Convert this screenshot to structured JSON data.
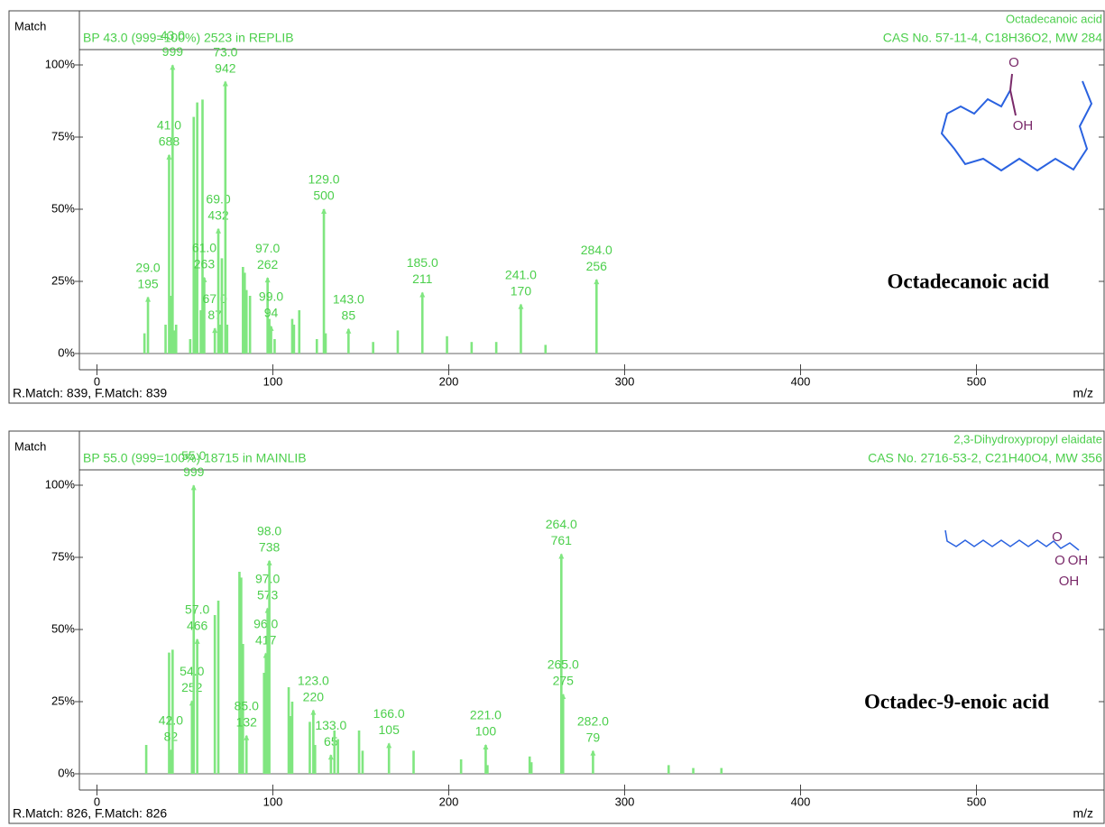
{
  "chart_data": [
    {
      "type": "bar",
      "ylabel": "Match",
      "header": "BP 43.0 (999=100%) 2523 in REPLIB",
      "title": "Octadecanoic acid",
      "subtitle": "CAS No. 57-11-4, C18H36O2, MW 284",
      "annotation": "Octadecanoic acid",
      "structure_labels": [
        "O",
        "OH"
      ],
      "footer": "R.Match: 839, F.Match: 839",
      "xlabel": "m/z",
      "color": "#80e680",
      "xlim": [
        -10,
        570
      ],
      "xticks": [
        0,
        100,
        200,
        300,
        400,
        500
      ],
      "ylim": [
        0,
        100
      ],
      "yticks": [
        {
          "value": 0,
          "label": "0%"
        },
        {
          "value": 25,
          "label": "25%"
        },
        {
          "value": 50,
          "label": "50%"
        },
        {
          "value": 75,
          "label": "75%"
        },
        {
          "value": 100,
          "label": "100%"
        }
      ],
      "x": [
        27,
        29,
        39,
        41,
        42,
        43,
        44,
        45,
        53,
        55,
        56,
        57,
        59,
        60,
        61,
        67,
        69,
        70,
        71,
        73,
        74,
        83,
        84,
        85,
        87,
        97,
        98,
        99,
        101,
        111,
        112,
        115,
        125,
        129,
        130,
        143,
        157,
        171,
        185,
        199,
        213,
        227,
        241,
        255,
        284
      ],
      "values": [
        7,
        19.5,
        10,
        68.8,
        20,
        99.9,
        8,
        10,
        5,
        82,
        30,
        87,
        15,
        88,
        26.3,
        8.7,
        43.2,
        10,
        33,
        94.2,
        10,
        30,
        28,
        22,
        20,
        26.2,
        12,
        9.4,
        5,
        12,
        10,
        15,
        5,
        50.0,
        7,
        8.5,
        4,
        8,
        21.1,
        6,
        4,
        4,
        17.0,
        3,
        25.6
      ],
      "x_labels": [
        null,
        "29.0",
        null,
        "41.0",
        null,
        "43.0",
        null,
        null,
        null,
        null,
        null,
        null,
        null,
        null,
        "61.0",
        "67.0",
        "69.0",
        null,
        null,
        "73.0",
        null,
        null,
        null,
        null,
        null,
        "97.0",
        null,
        "99.0",
        null,
        null,
        null,
        null,
        null,
        "129.0",
        null,
        "143.0",
        null,
        null,
        "185.0",
        null,
        null,
        null,
        "241.0",
        null,
        "284.0"
      ],
      "value_labels": [
        null,
        "195",
        null,
        "688",
        null,
        "999",
        null,
        null,
        null,
        null,
        null,
        null,
        null,
        null,
        "263",
        "87",
        "432",
        null,
        null,
        "942",
        null,
        null,
        null,
        null,
        null,
        "262",
        null,
        "94",
        null,
        null,
        null,
        null,
        null,
        "500",
        null,
        "85",
        null,
        null,
        "211",
        null,
        null,
        null,
        "170",
        null,
        "256"
      ]
    },
    {
      "type": "bar",
      "ylabel": "Match",
      "header": "BP 55.0 (999=100%) 18715 in MAINLIB",
      "title": "2,3-Dihydroxypropyl elaidate",
      "subtitle": "CAS No. 2716-53-2, C21H40O4, MW 356",
      "annotation": "Octadec-9-enoic acid",
      "structure_labels": [
        "O",
        "O",
        "OH",
        "OH"
      ],
      "footer": "R.Match: 826, F.Match: 826",
      "xlabel": "m/z",
      "color": "#80e680",
      "xlim": [
        -10,
        570
      ],
      "xticks": [
        0,
        100,
        200,
        300,
        400,
        500
      ],
      "ylim": [
        0,
        100
      ],
      "yticks": [
        {
          "value": 0,
          "label": "0%"
        },
        {
          "value": 25,
          "label": "25%"
        },
        {
          "value": 50,
          "label": "50%"
        },
        {
          "value": 75,
          "label": "75%"
        },
        {
          "value": 100,
          "label": "100%"
        }
      ],
      "x": [
        28,
        41,
        42,
        43,
        54,
        55,
        57,
        67,
        69,
        81,
        82,
        83,
        85,
        95,
        96,
        97,
        98,
        109,
        110,
        111,
        121,
        123,
        124,
        133,
        135,
        137,
        149,
        151,
        166,
        180,
        207,
        221,
        222,
        246,
        247,
        264,
        265,
        282,
        325,
        339,
        355
      ],
      "values": [
        10,
        42,
        8.2,
        43,
        25.2,
        99.9,
        46.6,
        55,
        60,
        70,
        68,
        45,
        13.2,
        35,
        41.7,
        57.3,
        73.8,
        30,
        20,
        25,
        18,
        22.0,
        10,
        6.5,
        15,
        12,
        15,
        8,
        10.5,
        8,
        5,
        10.0,
        3,
        6,
        4,
        76.1,
        27.5,
        7.9,
        3,
        2,
        2
      ],
      "x_labels": [
        null,
        null,
        "42.0",
        null,
        "54.0",
        "55.0",
        "57.0",
        null,
        null,
        null,
        null,
        null,
        "85.0",
        null,
        "96.0",
        "97.0",
        "98.0",
        null,
        null,
        null,
        null,
        "123.0",
        null,
        "133.0",
        null,
        null,
        null,
        null,
        "166.0",
        null,
        null,
        "221.0",
        null,
        null,
        null,
        "264.0",
        "265.0",
        "282.0",
        null,
        null,
        null
      ],
      "value_labels": [
        null,
        null,
        "82",
        null,
        "252",
        "999",
        "466",
        null,
        null,
        null,
        null,
        null,
        "132",
        null,
        "417",
        "573",
        "738",
        null,
        null,
        null,
        null,
        "220",
        null,
        "65",
        null,
        null,
        null,
        null,
        "105",
        null,
        null,
        "100",
        null,
        null,
        null,
        "761",
        "275",
        "79",
        null,
        null,
        null
      ]
    }
  ]
}
